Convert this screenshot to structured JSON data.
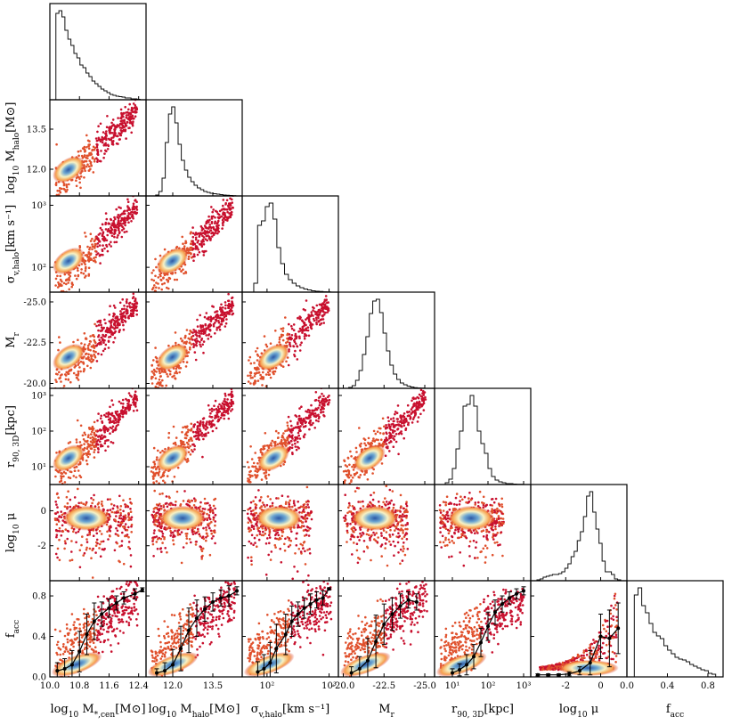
{
  "chart_data": {
    "type": "corner",
    "title": "",
    "variables": [
      {
        "key": "mstar",
        "label_base": "log",
        "label_sub": "10",
        "label_rest": " M",
        "label_rest_sub": "*,cen",
        "label_unit": "[M⊙]",
        "xlabel": "log10 M*,cen[M⊙]",
        "range": [
          10.0,
          12.6
        ],
        "log": false,
        "ticks": [
          10.0,
          10.8,
          11.6,
          12.4
        ],
        "tick_labels": [
          "10.0",
          "10.8",
          "11.6",
          "12.4"
        ]
      },
      {
        "key": "mhalo",
        "label_base": "log",
        "label_sub": "10",
        "label_rest": " M",
        "label_rest_sub": "halo",
        "label_unit": "[M⊙]",
        "xlabel": "log10 Mhalo[M⊙]",
        "range": [
          11.0,
          14.6
        ],
        "log": false,
        "ticks": [
          12.0,
          13.5
        ],
        "tick_labels": [
          "12.0",
          "13.5"
        ]
      },
      {
        "key": "sigma",
        "label_base": "σ",
        "label_sub": "v,halo",
        "label_rest": "",
        "label_rest_sub": "",
        "label_unit": "[km s⁻¹]",
        "xlabel": "σv,halo[km s−1]",
        "range": [
          1.6,
          3.15
        ],
        "log": true,
        "ticks": [
          2.0,
          3.0
        ],
        "tick_labels": [
          "10²",
          "10³"
        ]
      },
      {
        "key": "mr",
        "label_base": "M",
        "label_sub": "r",
        "label_rest": "",
        "label_rest_sub": "",
        "label_unit": "",
        "xlabel": "Mr",
        "range": [
          -19.7,
          -25.6
        ],
        "log": false,
        "ticks": [
          -20.0,
          -22.5,
          -25.0
        ],
        "tick_labels": [
          "-20.0",
          "-22.5",
          "-25.0"
        ]
      },
      {
        "key": "r90",
        "label_base": "r",
        "label_sub": "90, 3D",
        "label_rest": "",
        "label_rest_sub": "",
        "label_unit": "[kpc]",
        "xlabel": "r90,3D[kpc]",
        "range": [
          0.5,
          3.2
        ],
        "log": true,
        "ticks": [
          1.0,
          2.0,
          3.0
        ],
        "tick_labels": [
          "10¹",
          "10²",
          "10³"
        ]
      },
      {
        "key": "mu",
        "label_base": "log",
        "label_sub": "10",
        "label_rest": " μ",
        "label_rest_sub": "",
        "label_unit": "",
        "xlabel": "log10 μ",
        "range": [
          -4.0,
          1.5
        ],
        "log": false,
        "ticks": [
          -2.0,
          0.0
        ],
        "tick_labels": [
          "-2",
          "0"
        ]
      },
      {
        "key": "facc",
        "label_base": "f",
        "label_sub": "acc",
        "label_rest": "",
        "label_rest_sub": "",
        "label_unit": "",
        "xlabel": "facc",
        "range": [
          0.0,
          0.95
        ],
        "log": false,
        "ticks": [
          0.0,
          0.4,
          0.8
        ],
        "tick_labels": [
          "0.0",
          "0.4",
          "0.8"
        ]
      }
    ],
    "y_ticks": [
      null,
      {
        "ticks": [
          12.0,
          13.5
        ],
        "tick_labels": [
          "12.0",
          "13.5"
        ]
      },
      {
        "ticks": [
          2.0,
          3.0
        ],
        "tick_labels": [
          "10²",
          "10³"
        ]
      },
      {
        "ticks": [
          -20.0,
          -22.5,
          -25.0
        ],
        "tick_labels": [
          "-20.0",
          "-22.5",
          "-25.0"
        ]
      },
      {
        "ticks": [
          1.0,
          2.0,
          3.0
        ],
        "tick_labels": [
          "10¹",
          "10²",
          "10³"
        ]
      },
      {
        "ticks": [
          -2.0,
          0.0
        ],
        "tick_labels": [
          "-2",
          "0"
        ]
      },
      {
        "ticks": [
          0.0,
          0.4,
          0.8
        ],
        "tick_labels": [
          "0.0",
          "0.4",
          "0.8"
        ]
      }
    ],
    "histograms": [
      {
        "var": "mstar",
        "heights": [
          0.97,
          1.0,
          0.93,
          0.78,
          0.68,
          0.61,
          0.52,
          0.47,
          0.39,
          0.36,
          0.3,
          0.26,
          0.21,
          0.18,
          0.15,
          0.12,
          0.1,
          0.08,
          0.06,
          0.05,
          0.04,
          0.035,
          0.03,
          0.02,
          0.02,
          0.01,
          0.01,
          0.005
        ]
      },
      {
        "var": "mhalo",
        "heights": [
          0.0,
          0.01,
          0.05,
          0.2,
          0.6,
          0.92,
          1.0,
          0.82,
          0.58,
          0.4,
          0.29,
          0.21,
          0.16,
          0.12,
          0.09,
          0.07,
          0.05,
          0.04,
          0.03,
          0.025,
          0.02,
          0.015,
          0.01,
          0.008,
          0.005,
          0.003
        ]
      },
      {
        "var": "sigma",
        "heights": [
          0.0,
          0.1,
          0.75,
          0.8,
          0.96,
          1.0,
          0.82,
          0.5,
          0.32,
          0.2,
          0.14,
          0.1,
          0.07,
          0.05,
          0.035,
          0.025,
          0.015,
          0.01,
          0.008,
          0.004,
          0.002
        ]
      },
      {
        "var": "mr",
        "heights": [
          0.0,
          0.01,
          0.03,
          0.09,
          0.2,
          0.38,
          0.58,
          0.84,
          0.98,
          1.0,
          0.85,
          0.62,
          0.42,
          0.26,
          0.16,
          0.1,
          0.06,
          0.04,
          0.025,
          0.015,
          0.008,
          0.004,
          0.002,
          0.0
        ]
      },
      {
        "var": "r90",
        "heights": [
          0.0,
          0.02,
          0.06,
          0.18,
          0.4,
          0.6,
          0.88,
          0.9,
          1.0,
          0.88,
          0.6,
          0.46,
          0.35,
          0.18,
          0.09,
          0.05,
          0.03,
          0.02,
          0.01,
          0.01,
          0.005,
          0.003,
          0.002
        ]
      },
      {
        "var": "mu",
        "heights": [
          0.01,
          0.02,
          0.04,
          0.05,
          0.06,
          0.07,
          0.07,
          0.08,
          0.1,
          0.14,
          0.19,
          0.27,
          0.33,
          0.45,
          0.55,
          0.72,
          0.95,
          1.0,
          0.77,
          0.58,
          0.42,
          0.22,
          0.1,
          0.1,
          0.07,
          0.02,
          0.01
        ]
      },
      {
        "var": "facc",
        "heights": [
          0.92,
          1.0,
          0.8,
          0.72,
          0.6,
          0.5,
          0.46,
          0.43,
          0.35,
          0.3,
          0.26,
          0.22,
          0.2,
          0.19,
          0.17,
          0.14,
          0.12,
          0.1,
          0.08,
          0.07,
          0.04,
          0.03
        ]
      }
    ],
    "median_curves": [
      {
        "xvar": "mstar",
        "x": [
          10.2,
          10.4,
          10.6,
          10.8,
          11.0,
          11.2,
          11.4,
          11.6,
          11.8,
          12.0,
          12.3,
          12.5
        ],
        "y": [
          0.06,
          0.08,
          0.12,
          0.25,
          0.42,
          0.55,
          0.62,
          0.68,
          0.73,
          0.78,
          0.82,
          0.86
        ],
        "err": [
          0.08,
          0.1,
          0.14,
          0.2,
          0.2,
          0.18,
          0.12,
          0.09,
          0.07,
          0.06,
          0.05,
          0.02
        ]
      },
      {
        "xvar": "mhalo",
        "x": [
          11.4,
          11.7,
          12.0,
          12.3,
          12.6,
          12.9,
          13.2,
          13.5,
          13.8,
          14.1,
          14.4
        ],
        "y": [
          0.04,
          0.06,
          0.12,
          0.28,
          0.46,
          0.58,
          0.67,
          0.74,
          0.78,
          0.8,
          0.85
        ],
        "err": [
          0.04,
          0.08,
          0.15,
          0.22,
          0.22,
          0.18,
          0.12,
          0.09,
          0.08,
          0.1,
          0.04
        ]
      },
      {
        "xvar": "sigma",
        "x": [
          1.85,
          1.95,
          2.05,
          2.15,
          2.3,
          2.4,
          2.5,
          2.6,
          2.7,
          2.8,
          2.9,
          3.0
        ],
        "y": [
          0.05,
          0.08,
          0.14,
          0.28,
          0.42,
          0.55,
          0.62,
          0.68,
          0.72,
          0.76,
          0.78,
          0.87
        ],
        "err": [
          0.1,
          0.14,
          0.2,
          0.24,
          0.2,
          0.15,
          0.12,
          0.1,
          0.1,
          0.08,
          0.07,
          0.01
        ]
      },
      {
        "xvar": "mr",
        "x": [
          -20.5,
          -21.0,
          -21.5,
          -22.0,
          -22.5,
          -23.0,
          -23.5,
          -24.0,
          -24.5
        ],
        "y": [
          0.04,
          0.08,
          0.16,
          0.35,
          0.52,
          0.62,
          0.7,
          0.76,
          0.74
        ],
        "err": [
          0.06,
          0.12,
          0.22,
          0.26,
          0.2,
          0.16,
          0.12,
          0.08,
          0.08
        ]
      },
      {
        "xvar": "r90",
        "x": [
          1.0,
          1.2,
          1.4,
          1.6,
          1.8,
          2.0,
          2.2,
          2.4,
          2.6,
          2.8,
          3.0
        ],
        "y": [
          0.04,
          0.07,
          0.12,
          0.2,
          0.34,
          0.5,
          0.64,
          0.72,
          0.78,
          0.82,
          0.85
        ],
        "err": [
          0.04,
          0.06,
          0.1,
          0.12,
          0.14,
          0.14,
          0.12,
          0.08,
          0.06,
          0.05,
          0.04
        ]
      },
      {
        "xvar": "mu",
        "x": [
          -3.6,
          -3.0,
          -2.4,
          -1.8,
          -1.2,
          -0.6,
          0.0,
          0.5,
          1.0
        ],
        "y": [
          0.02,
          0.02,
          0.02,
          0.03,
          0.06,
          0.14,
          0.4,
          0.38,
          0.48
        ],
        "err": [
          0.01,
          0.01,
          0.01,
          0.02,
          0.04,
          0.12,
          0.22,
          0.28,
          0.25
        ]
      }
    ]
  }
}
